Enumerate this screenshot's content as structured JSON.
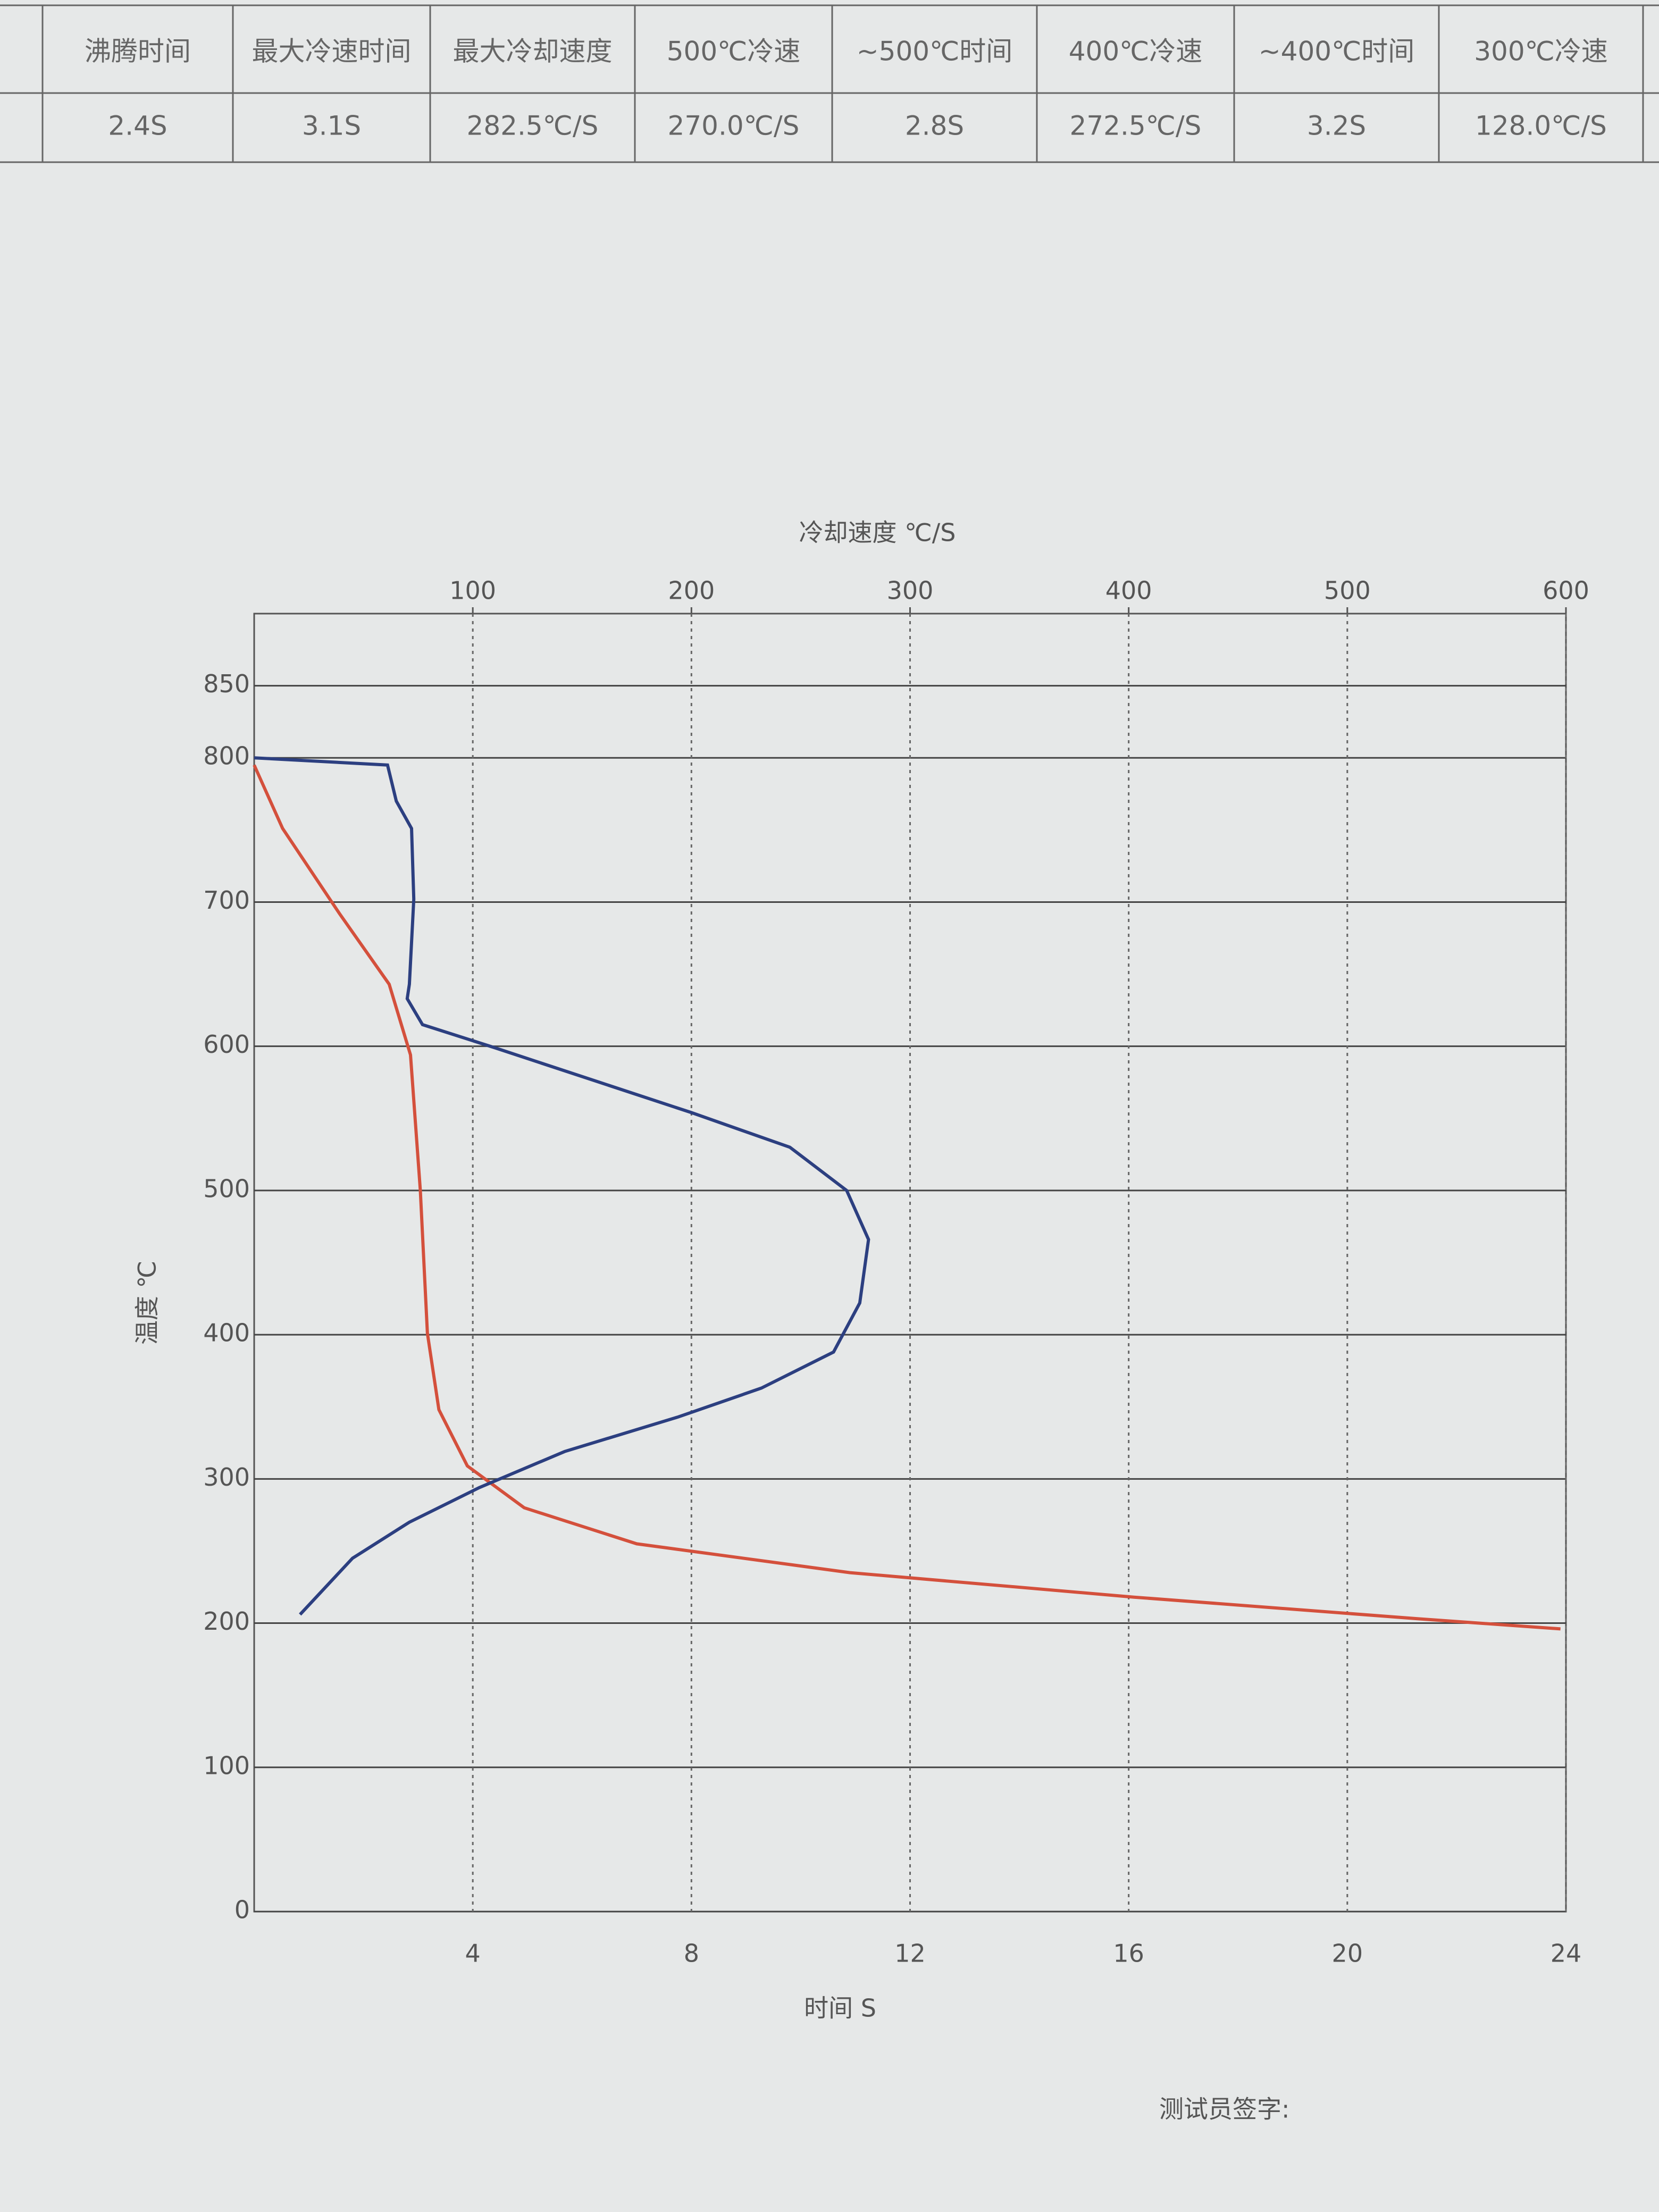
{
  "table": {
    "headers": [
      "沸腾时间",
      "最大冷速时间",
      "最大冷却速度",
      "500℃冷速",
      "~500℃时间",
      "400℃冷速",
      "~400℃时间",
      "300℃冷速"
    ],
    "rows": [
      [
        "2.4S",
        "3.1S",
        "282.5℃/S",
        "270.0℃/S",
        "2.8S",
        "272.5℃/S",
        "3.2S",
        "128.0℃/S"
      ]
    ]
  },
  "chart_data": {
    "type": "line",
    "title": "冷却速度 ℃/S",
    "xlabel": "时间 S",
    "ylabel": "温度 ℃",
    "xlim": [
      0,
      24
    ],
    "xticks": [
      4,
      8,
      12,
      16,
      20,
      24
    ],
    "x2lim": [
      0,
      600
    ],
    "x2ticks": [
      100,
      200,
      300,
      400,
      500,
      600
    ],
    "ylim": [
      0,
      900
    ],
    "yticks": [
      0,
      100,
      200,
      300,
      400,
      500,
      600,
      700,
      800,
      850
    ],
    "grid": true,
    "series": [
      {
        "color": "#d4503c",
        "x": [
          0,
          0.52,
          1.56,
          2.47,
          2.86,
          3.04,
          3.17,
          3.38,
          3.9,
          4.94,
          7.0,
          10.9,
          16.1,
          21.3,
          23.9
        ],
        "values": [
          795,
          751,
          692,
          643,
          594,
          500,
          401,
          348,
          309,
          280,
          255,
          235,
          218,
          203,
          196
        ]
      },
      {
        "color": "#2c3f80",
        "axis": "x2",
        "x": [
          0,
          61,
          65,
          72,
          73,
          71,
          70,
          77,
          110,
          200,
          245,
          271,
          281,
          277,
          265,
          232,
          194,
          142,
          103,
          71,
          45,
          21
        ],
        "values": [
          800,
          795,
          770,
          751,
          702,
          643,
          633,
          615,
          599,
          554,
          530,
          500,
          466,
          422,
          388,
          363,
          343,
          319,
          294,
          270,
          245,
          206
        ]
      }
    ]
  },
  "footer": {
    "signature": "测试员签字:"
  }
}
